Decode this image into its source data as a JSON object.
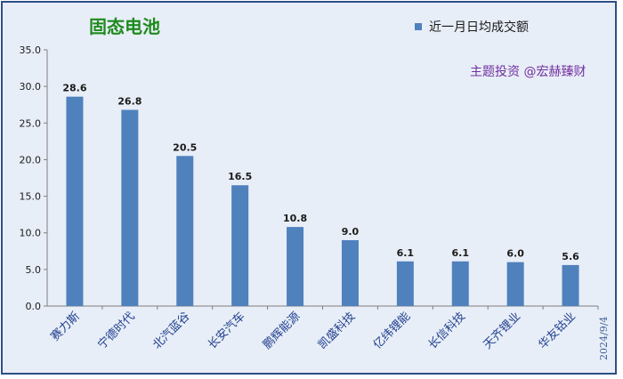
{
  "chart_data": {
    "type": "bar",
    "title": "固态电池",
    "categories": [
      "赛力斯",
      "宁德时代",
      "北汽蓝谷",
      "长安汽车",
      "鹏辉能源",
      "凯盛科技",
      "亿纬锂能",
      "长信科技",
      "天齐锂业",
      "华友钴业"
    ],
    "series": [
      {
        "name": "近一月日均成交额",
        "values": [
          28.6,
          26.8,
          20.5,
          16.5,
          10.8,
          9.0,
          6.1,
          6.1,
          6.0,
          5.6
        ]
      }
    ],
    "data_labels": [
      "28.6",
      "26.8",
      "20.5",
      "16.5",
      "10.8",
      "9.0",
      "6.1",
      "6.1",
      "6.0",
      "5.6"
    ],
    "y_ticks": [
      "0.0",
      "5.0",
      "10.0",
      "15.0",
      "20.0",
      "25.0",
      "30.0",
      "35.0"
    ],
    "ylim": [
      0,
      35
    ],
    "grid": false,
    "legend_position": "top-right",
    "bar_color": "#4f81bd"
  },
  "annotations": {
    "watermark": "主题投资 @宏赫臻财",
    "date": "2024/9/4"
  }
}
